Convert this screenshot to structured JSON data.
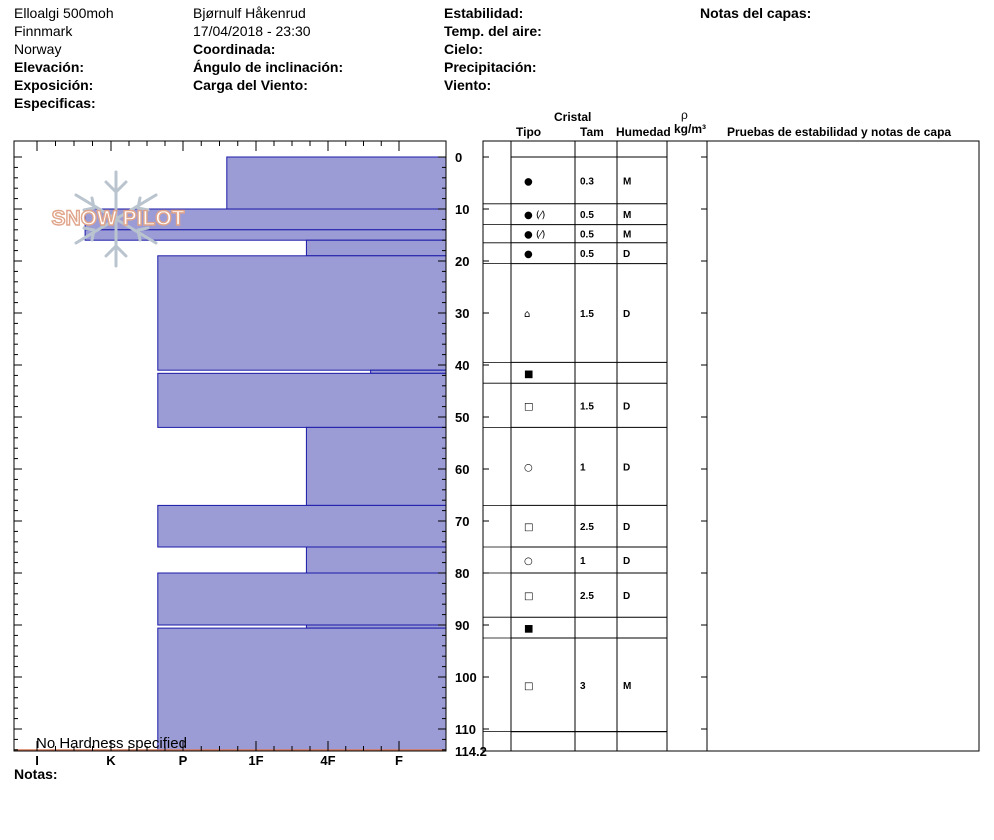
{
  "header": {
    "col1": [
      "Elloalgi 500moh",
      "Finnmark",
      "Norway"
    ],
    "elevacion_label": "Elevación:",
    "exposicion_label": "Exposición:",
    "especificas_label": "Especificas:",
    "observer": "Bjørnulf Håkenrud",
    "datetime": "17/04/2018 - 23:30",
    "coordinada_label": "Coordinada:",
    "angulo_label": "Ángulo de inclinación:",
    "carga_label": "Carga del Viento:",
    "estabilidad_label": "Estabilidad:",
    "temp_label": "Temp. del aire:",
    "cielo_label": "Cielo:",
    "precip_label": "Precipitación:",
    "viento_label": "Viento:",
    "notas_capas_label": "Notas del capas:"
  },
  "columns": {
    "cristal": "Cristal",
    "tipo": "Tipo",
    "tam": "Tam",
    "humedad": "Humedad",
    "rho": "ρ",
    "density_unit": "kg/m³",
    "pruebas": "Pruebas de estabilidad y notas de capa"
  },
  "logo_text": "SNOW PILOT",
  "no_hardness": "No Hardness specified",
  "notas_label": "Notas:",
  "colors": {
    "bar_fill": "#9b9bd6",
    "bar_stroke": "#1a1aa8",
    "ground": "#d97a5a"
  },
  "chart_data": {
    "type": "bar",
    "orientation": "horizontal",
    "y_axis": {
      "min": 0,
      "max": 114.2,
      "ticks": [
        0,
        10,
        20,
        30,
        40,
        50,
        60,
        70,
        80,
        90,
        100,
        110
      ],
      "end_label": "114.2",
      "inverted": true
    },
    "hardness_scale": [
      "I",
      "K",
      "P",
      "1F",
      "4F",
      "F"
    ],
    "hardness_values": [
      0,
      1,
      2,
      3,
      4,
      5
    ],
    "bars": [
      {
        "top": 0,
        "bottom": 10,
        "hardness": 2.6
      },
      {
        "top": 10,
        "bottom": 14,
        "hardness": 0.65
      },
      {
        "top": 14,
        "bottom": 16,
        "hardness": 0.65
      },
      {
        "top": 16,
        "bottom": 19,
        "hardness": 3.7
      },
      {
        "top": 19,
        "bottom": 41,
        "hardness": 1.65
      },
      {
        "top": 41,
        "bottom": 41.6,
        "hardness": 4.6
      },
      {
        "top": 41.6,
        "bottom": 52,
        "hardness": 1.65
      },
      {
        "top": 52,
        "bottom": 67,
        "hardness": 3.7
      },
      {
        "top": 67,
        "bottom": 75,
        "hardness": 1.65
      },
      {
        "top": 75,
        "bottom": 80,
        "hardness": 3.7
      },
      {
        "top": 80,
        "bottom": 90,
        "hardness": 1.65
      },
      {
        "top": 90,
        "bottom": 90.6,
        "hardness": 3.7
      },
      {
        "top": 90.6,
        "bottom": 114.2,
        "hardness": 1.65
      }
    ],
    "layers": [
      {
        "top": 0,
        "bottom": 9,
        "symbol": "●",
        "tam": "0.3",
        "hum": "M"
      },
      {
        "top": 9,
        "bottom": 13,
        "symbol": "● (⁄)",
        "tam": "0.5",
        "hum": "M"
      },
      {
        "top": 13,
        "bottom": 16.5,
        "symbol": "● (⁄)",
        "tam": "0.5",
        "hum": "M"
      },
      {
        "top": 16.5,
        "bottom": 20.5,
        "symbol": "●",
        "tam": "0.5",
        "hum": "D"
      },
      {
        "top": 20.5,
        "bottom": 39.5,
        "symbol": "⌂",
        "tam": "1.5",
        "hum": "D"
      },
      {
        "top": 39.5,
        "bottom": 43.5,
        "symbol": "■",
        "tam": "",
        "hum": ""
      },
      {
        "top": 43.5,
        "bottom": 52,
        "symbol": "□",
        "tam": "1.5",
        "hum": "D"
      },
      {
        "top": 52,
        "bottom": 67,
        "symbol": "○",
        "tam": "1",
        "hum": "D"
      },
      {
        "top": 67,
        "bottom": 75,
        "symbol": "□",
        "tam": "2.5",
        "hum": "D"
      },
      {
        "top": 75,
        "bottom": 80,
        "symbol": "○",
        "tam": "1",
        "hum": "D"
      },
      {
        "top": 80,
        "bottom": 88.5,
        "symbol": "□",
        "tam": "2.5",
        "hum": "D"
      },
      {
        "top": 88.5,
        "bottom": 92.5,
        "symbol": "■",
        "tam": "",
        "hum": ""
      },
      {
        "top": 92.5,
        "bottom": 110.5,
        "symbol": "□",
        "tam": "3",
        "hum": "M"
      },
      {
        "top": 110.5,
        "bottom": 114.2,
        "symbol": "",
        "tam": "",
        "hum": ""
      }
    ]
  }
}
